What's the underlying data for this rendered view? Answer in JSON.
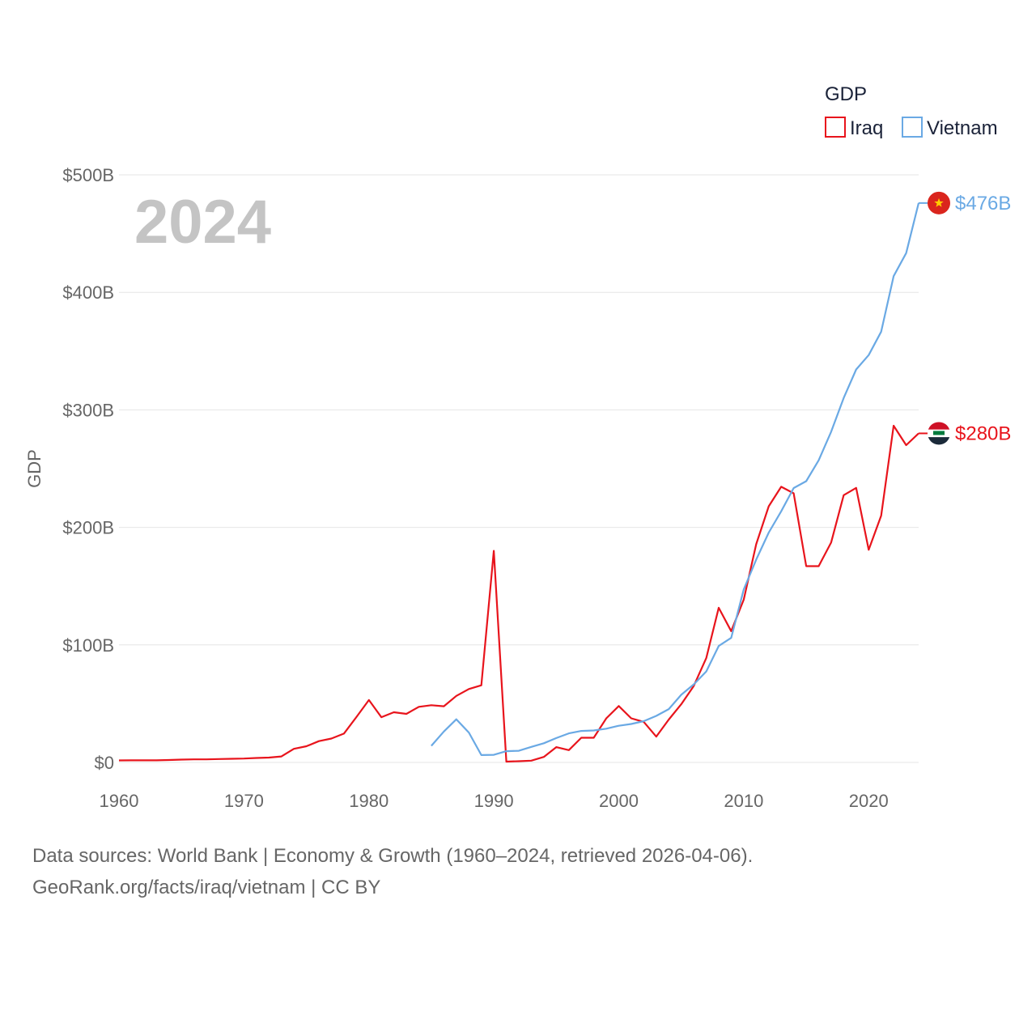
{
  "colors": {
    "iraq": "#e8141c",
    "vietnam": "#6aa9e4",
    "grid": "#e6e6e6",
    "tick": "#666666",
    "year": "#c4c4c4"
  },
  "footer": {
    "line1": "Data sources: World Bank | Economy & Growth (1960–2024, retrieved 2026-04-06).",
    "line2": "GeoRank.org/facts/iraq/vietnam | CC BY"
  },
  "icons": {
    "vietnam_flag": "vietnam-flag-icon",
    "iraq_flag": "iraq-flag-icon"
  },
  "chart_data": {
    "type": "line",
    "title": "",
    "year_label": "2024",
    "xlabel": "",
    "ylabel": "GDP",
    "xlim": [
      1960,
      2024
    ],
    "ylim": [
      0,
      500
    ],
    "x_ticks": [
      1960,
      1970,
      1980,
      1990,
      2000,
      2010,
      2020
    ],
    "x_tick_labels": [
      "1960",
      "1970",
      "1980",
      "1990",
      "2000",
      "2010",
      "2020"
    ],
    "y_ticks": [
      0,
      100,
      200,
      300,
      400,
      500
    ],
    "y_tick_labels": [
      "$0",
      "$100B",
      "$200B",
      "$300B",
      "$400B",
      "$500B"
    ],
    "grid": true,
    "legend": {
      "title": "GDP",
      "position": "top-right",
      "entries": [
        "Iraq",
        "Vietnam"
      ]
    },
    "series": [
      {
        "name": "Iraq",
        "end_label": "$280B",
        "x": [
          1960,
          1961,
          1962,
          1963,
          1964,
          1965,
          1966,
          1967,
          1968,
          1969,
          1970,
          1971,
          1972,
          1973,
          1974,
          1975,
          1976,
          1977,
          1978,
          1979,
          1980,
          1981,
          1982,
          1983,
          1984,
          1985,
          1986,
          1987,
          1988,
          1989,
          1990,
          1991,
          1992,
          1993,
          1994,
          1995,
          1996,
          1997,
          1998,
          1999,
          2000,
          2001,
          2002,
          2003,
          2004,
          2005,
          2006,
          2007,
          2008,
          2009,
          2010,
          2011,
          2012,
          2013,
          2014,
          2015,
          2016,
          2017,
          2018,
          2019,
          2020,
          2021,
          2022,
          2023,
          2024
        ],
        "values": [
          1.7,
          1.8,
          1.8,
          1.8,
          2.1,
          2.4,
          2.6,
          2.6,
          2.9,
          3.1,
          3.3,
          3.8,
          4.1,
          5.1,
          11.6,
          13.8,
          18.1,
          20.3,
          24.5,
          38.6,
          53.1,
          38.5,
          42.7,
          41.3,
          47.3,
          48.7,
          47.8,
          56.6,
          62.5,
          65.6,
          180.0,
          0.7,
          1.0,
          1.5,
          4.7,
          13.0,
          10.5,
          21.0,
          21.0,
          37.5,
          48.0,
          37.5,
          34.5,
          22.0,
          36.5,
          49.5,
          65.0,
          88.8,
          131.6,
          111.7,
          138.5,
          185.7,
          218.0,
          234.6,
          229.0,
          167.0,
          167.0,
          187.2,
          227.4,
          233.6,
          180.9,
          210.0,
          286.5,
          270.0,
          280.0
        ]
      },
      {
        "name": "Vietnam",
        "end_label": "$476B",
        "x": [
          1985,
          1986,
          1987,
          1988,
          1989,
          1990,
          1991,
          1992,
          1993,
          1994,
          1995,
          1996,
          1997,
          1998,
          1999,
          2000,
          2001,
          2002,
          2003,
          2004,
          2005,
          2006,
          2007,
          2008,
          2009,
          2010,
          2011,
          2012,
          2013,
          2014,
          2015,
          2016,
          2017,
          2018,
          2019,
          2020,
          2021,
          2022,
          2023,
          2024
        ],
        "values": [
          14.1,
          26.3,
          36.7,
          25.4,
          6.3,
          6.5,
          9.6,
          9.9,
          13.2,
          16.3,
          20.7,
          24.7,
          26.8,
          27.2,
          28.7,
          31.2,
          32.7,
          35.1,
          39.6,
          45.4,
          57.6,
          66.4,
          77.4,
          99.1,
          106.0,
          147.2,
          172.6,
          195.6,
          213.7,
          233.5,
          239.3,
          257.1,
          281.4,
          310.1,
          334.4,
          346.6,
          366.5,
          413.8,
          433.4,
          476.0
        ]
      }
    ]
  }
}
